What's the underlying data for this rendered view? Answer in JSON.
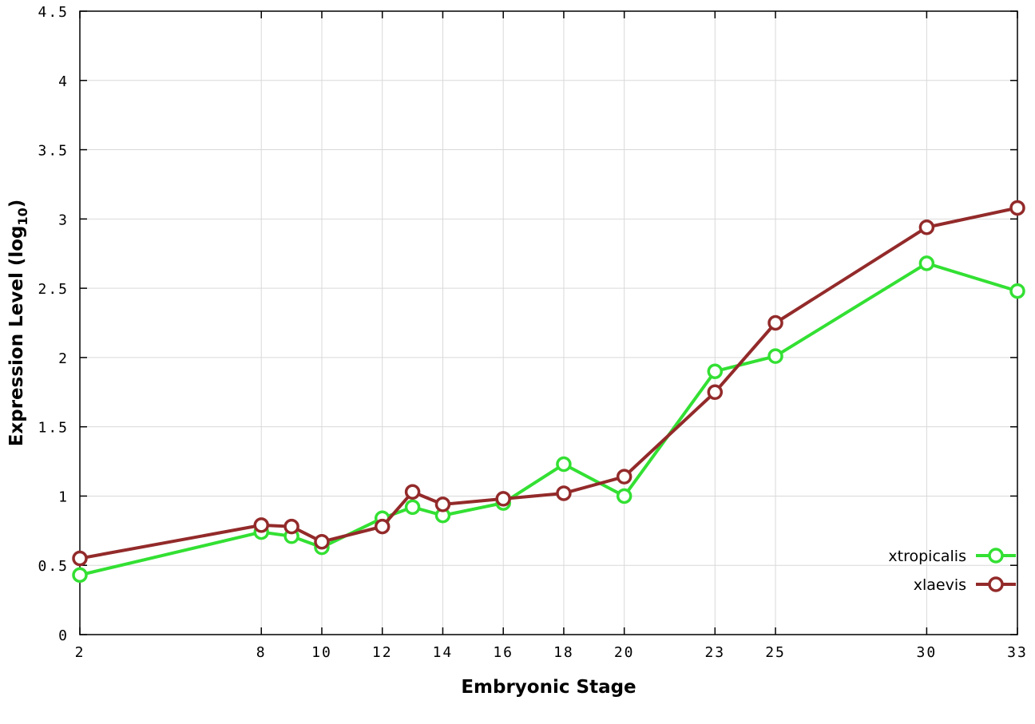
{
  "chart_data": {
    "type": "line",
    "title": "",
    "xlabel": "Embryonic Stage",
    "ylabel": "Expression Level (log_10)",
    "ylabel_main": "Expression Level (log",
    "ylabel_sub": "10",
    "ylabel_close": ")",
    "xlim": [
      2,
      33
    ],
    "ylim": [
      0,
      4.5
    ],
    "grid": true,
    "legend_position": "inside-bottom-right",
    "xticks": [
      2,
      8,
      10,
      12,
      14,
      16,
      18,
      20,
      23,
      25,
      30,
      33
    ],
    "xtick_labels": [
      "2",
      "8",
      "10",
      "12",
      "14",
      "16",
      "18",
      "20",
      "23",
      "25",
      "30",
      "33"
    ],
    "yticks": [
      0,
      0.5,
      1,
      1.5,
      2,
      2.5,
      3,
      3.5,
      4,
      4.5
    ],
    "ytick_labels": [
      "0",
      "0.5",
      "1",
      "1.5",
      "2",
      "2.5",
      "3",
      "3.5",
      "4",
      "4.5"
    ],
    "x": [
      2,
      8,
      9,
      10,
      12,
      13,
      14,
      16,
      18,
      20,
      23,
      25,
      30,
      33
    ],
    "series": [
      {
        "name": "xtropicalis",
        "color": "#33e033",
        "values": [
          0.43,
          0.74,
          0.71,
          0.63,
          0.84,
          0.92,
          0.86,
          0.95,
          1.23,
          1.0,
          1.9,
          2.01,
          2.68,
          2.48
        ]
      },
      {
        "name": "xlaevis",
        "color": "#932a2a",
        "values": [
          0.55,
          0.79,
          0.78,
          0.67,
          0.78,
          1.03,
          0.94,
          0.98,
          1.02,
          1.14,
          1.75,
          2.25,
          2.94,
          3.08
        ]
      }
    ],
    "colors": {
      "grid": "#d9d9d9",
      "border": "#000000",
      "background": "#ffffff",
      "marker_fill": "#ffffff"
    }
  }
}
